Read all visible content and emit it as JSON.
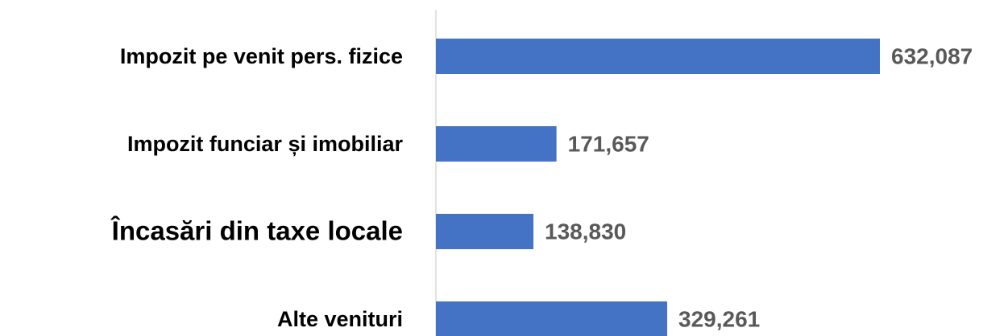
{
  "chart_data": {
    "type": "bar",
    "orientation": "horizontal",
    "categories": [
      "Impozit pe venit pers. fizice",
      "Impozit funciar și imobiliar",
      "Încasări din taxe locale",
      "Alte venituri"
    ],
    "values": [
      632087,
      171657,
      138830,
      329261
    ],
    "value_labels": [
      "632,087",
      "171,657",
      "138,830",
      "329,261"
    ],
    "color": "#4472c4"
  }
}
